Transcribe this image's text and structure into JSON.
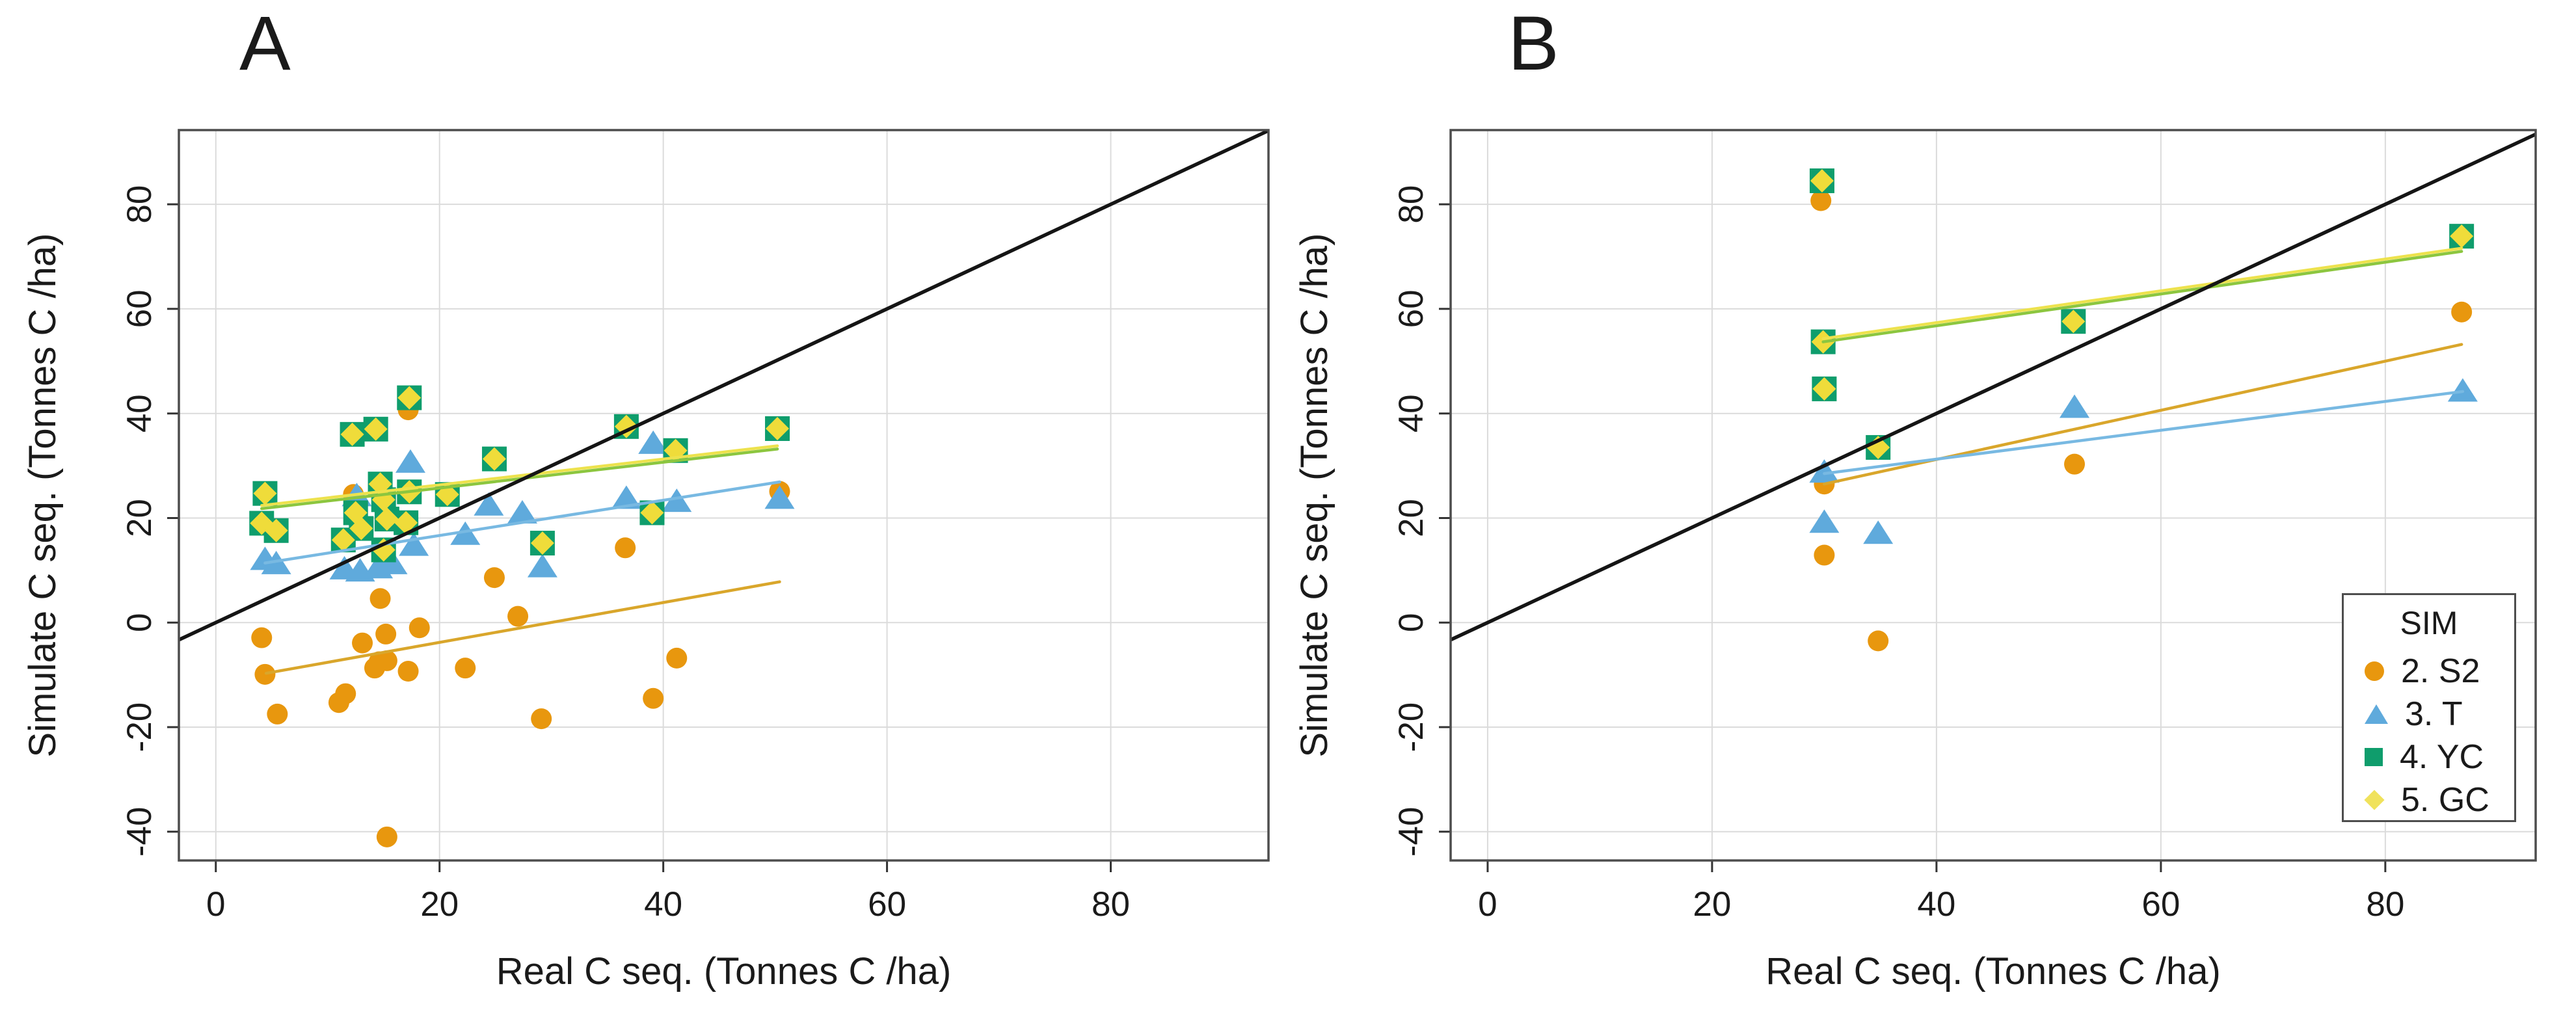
{
  "legend": {
    "title": "SIM",
    "items": [
      {
        "label": "2. S2",
        "marker": "circle",
        "color": "#E8970E"
      },
      {
        "label": "3. T",
        "marker": "triangle",
        "color": "#5FAADC"
      },
      {
        "label": "4. YC",
        "marker": "square",
        "color": "#0F9D6C"
      },
      {
        "label": "5. GC",
        "marker": "diamond",
        "color": "#F0E25C"
      }
    ]
  },
  "style_colors": {
    "grid": "#DBDBDB",
    "plot_border": "#4D4D4D",
    "tick": "#333333",
    "identity_line": "#151515"
  },
  "chart_data": [
    {
      "type": "scatter",
      "title": "A",
      "xlabel": "Real C seq. (Tonnes C /ha)",
      "ylabel": "Simulate C seq. (Tonnes C /ha)",
      "xlim": [
        -3.3,
        94.1
      ],
      "ylim": [
        -45.5,
        94.2
      ],
      "xticks": [
        0,
        20,
        40,
        60,
        80
      ],
      "yticks": [
        -40,
        -20,
        0,
        20,
        40,
        60,
        80
      ],
      "grid": true,
      "legend_position": "none",
      "series": [
        {
          "name": "2. S2",
          "marker": "circle",
          "color": "#E8970E",
          "points": [
            [
              4.1,
              -2.9
            ],
            [
              4.4,
              -9.9
            ],
            [
              5.5,
              -17.5
            ],
            [
              11.0,
              -15.3
            ],
            [
              11.6,
              -13.6
            ],
            [
              12.3,
              24.5
            ],
            [
              13.1,
              -3.9
            ],
            [
              14.2,
              -8.7
            ],
            [
              14.6,
              -7.5
            ],
            [
              14.7,
              4.6
            ],
            [
              15.2,
              -2.2
            ],
            [
              15.3,
              -7.3
            ],
            [
              15.3,
              -41.0
            ],
            [
              17.2,
              -9.3
            ],
            [
              17.2,
              40.7
            ],
            [
              18.2,
              -1.0
            ],
            [
              22.3,
              -8.7
            ],
            [
              24.9,
              8.6
            ],
            [
              27.0,
              1.2
            ],
            [
              29.1,
              -18.4
            ],
            [
              36.6,
              14.3
            ],
            [
              39.1,
              -14.5
            ],
            [
              41.2,
              -6.8
            ],
            [
              50.4,
              25.1
            ]
          ]
        },
        {
          "name": "3. T",
          "marker": "triangle",
          "color": "#5FAADC",
          "points": [
            [
              4.4,
              11.8
            ],
            [
              5.4,
              11.0
            ],
            [
              11.5,
              10.0
            ],
            [
              12.6,
              24.0
            ],
            [
              12.9,
              9.6
            ],
            [
              14.5,
              10.2
            ],
            [
              15.4,
              11.8
            ],
            [
              15.8,
              11.0
            ],
            [
              17.4,
              30.4
            ],
            [
              17.7,
              14.5
            ],
            [
              22.3,
              16.6
            ],
            [
              24.4,
              22.2
            ],
            [
              27.4,
              20.7
            ],
            [
              29.2,
              10.4
            ],
            [
              36.7,
              23.5
            ],
            [
              39.1,
              34.0
            ],
            [
              41.2,
              22.9
            ],
            [
              50.4,
              23.5
            ]
          ]
        },
        {
          "name": "4. YC",
          "marker": "square",
          "color": "#0F9D6C",
          "points": [
            [
              4.1,
              19.0
            ],
            [
              4.4,
              24.7
            ],
            [
              5.4,
              17.6
            ],
            [
              11.4,
              15.8
            ],
            [
              12.2,
              36.0
            ],
            [
              12.5,
              21.0
            ],
            [
              13.0,
              18.0
            ],
            [
              14.3,
              37.0
            ],
            [
              14.7,
              26.5
            ],
            [
              15.0,
              13.9
            ],
            [
              15.0,
              23.5
            ],
            [
              15.3,
              19.8
            ],
            [
              17.0,
              19.1
            ],
            [
              17.3,
              25.0
            ],
            [
              17.3,
              43.0
            ],
            [
              20.7,
              24.5
            ],
            [
              24.9,
              31.3
            ],
            [
              29.2,
              15.2
            ],
            [
              36.7,
              37.5
            ],
            [
              39.0,
              21.0
            ],
            [
              41.1,
              32.9
            ],
            [
              50.2,
              37.1
            ]
          ]
        },
        {
          "name": "5. GC",
          "marker": "diamond",
          "color": "#EFDC3A",
          "points": [
            [
              4.1,
              19.0
            ],
            [
              4.4,
              24.7
            ],
            [
              5.4,
              17.6
            ],
            [
              11.4,
              15.8
            ],
            [
              12.2,
              36.0
            ],
            [
              12.5,
              21.0
            ],
            [
              13.0,
              18.0
            ],
            [
              14.3,
              37.0
            ],
            [
              14.7,
              26.5
            ],
            [
              15.0,
              13.9
            ],
            [
              15.0,
              23.5
            ],
            [
              15.3,
              19.8
            ],
            [
              17.0,
              19.1
            ],
            [
              17.3,
              25.0
            ],
            [
              17.3,
              43.0
            ],
            [
              20.7,
              24.5
            ],
            [
              24.9,
              31.3
            ],
            [
              29.2,
              15.2
            ],
            [
              36.7,
              37.5
            ],
            [
              39.0,
              21.0
            ],
            [
              41.1,
              32.9
            ],
            [
              50.2,
              37.1
            ]
          ]
        }
      ],
      "fit_lines": [
        {
          "series": "2. S2",
          "color": "#D9A62B",
          "from": [
            4.5,
            -9.7
          ],
          "to": [
            50.4,
            7.8
          ]
        },
        {
          "series": "3. T",
          "color": "#78B9E2",
          "from": [
            4.4,
            11.4
          ],
          "to": [
            50.4,
            26.9
          ]
        },
        {
          "series": "4. YC",
          "color": "#8CC63F",
          "from": [
            4.1,
            21.8
          ],
          "to": [
            50.2,
            33.2
          ]
        },
        {
          "series": "5. GC",
          "color": "#EDE24D",
          "from": [
            4.1,
            22.4
          ],
          "to": [
            50.2,
            33.8
          ]
        }
      ],
      "identity_line": {
        "from": [
          -3.3,
          -3.3
        ],
        "to": [
          94.1,
          94.1
        ]
      }
    },
    {
      "type": "scatter",
      "title": "B",
      "xlabel": "Real C seq. (Tonnes C /ha)",
      "ylabel": "Simulate C seq. (Tonnes C /ha)",
      "xlim": [
        -3.3,
        93.4
      ],
      "ylim": [
        -45.5,
        94.2
      ],
      "xticks": [
        0,
        20,
        40,
        60,
        80
      ],
      "yticks": [
        -40,
        -20,
        0,
        20,
        40,
        60,
        80
      ],
      "grid": true,
      "legend_position": "inside-right",
      "series": [
        {
          "name": "2. S2",
          "marker": "circle",
          "color": "#E8970E",
          "points": [
            [
              29.7,
              80.7
            ],
            [
              30.0,
              26.5
            ],
            [
              30.0,
              12.9
            ],
            [
              34.8,
              -3.5
            ],
            [
              52.3,
              30.3
            ],
            [
              86.8,
              59.4
            ]
          ]
        },
        {
          "name": "3. T",
          "marker": "triangle",
          "color": "#5FAADC",
          "points": [
            [
              30.0,
              28.5
            ],
            [
              30.0,
              18.9
            ],
            [
              34.8,
              16.8
            ],
            [
              52.3,
              40.9
            ],
            [
              86.9,
              44.0
            ]
          ]
        },
        {
          "name": "4. YC",
          "marker": "square",
          "color": "#0F9D6C",
          "points": [
            [
              29.8,
              84.5
            ],
            [
              29.9,
              53.7
            ],
            [
              30.0,
              44.7
            ],
            [
              34.8,
              33.5
            ],
            [
              52.2,
              57.6
            ],
            [
              86.8,
              73.9
            ]
          ]
        },
        {
          "name": "5. GC",
          "marker": "diamond",
          "color": "#EFDC3A",
          "points": [
            [
              29.8,
              84.5
            ],
            [
              29.9,
              53.7
            ],
            [
              30.0,
              44.7
            ],
            [
              34.8,
              33.5
            ],
            [
              52.2,
              57.6
            ],
            [
              86.8,
              73.9
            ]
          ]
        }
      ],
      "fit_lines": [
        {
          "series": "2. S2",
          "color": "#D9A62B",
          "from": [
            30.0,
            26.5
          ],
          "to": [
            86.8,
            53.2
          ]
        },
        {
          "series": "3. T",
          "color": "#78B9E2",
          "from": [
            30.0,
            28.5
          ],
          "to": [
            86.9,
            44.2
          ]
        },
        {
          "series": "4. YC",
          "color": "#8CC63F",
          "from": [
            29.9,
            53.7
          ],
          "to": [
            86.8,
            71.0
          ]
        },
        {
          "series": "5. GC",
          "color": "#EDE24D",
          "from": [
            29.9,
            54.3
          ],
          "to": [
            86.8,
            71.6
          ]
        }
      ],
      "identity_line": {
        "from": [
          -3.3,
          -3.3
        ],
        "to": [
          93.4,
          93.4
        ]
      }
    }
  ]
}
